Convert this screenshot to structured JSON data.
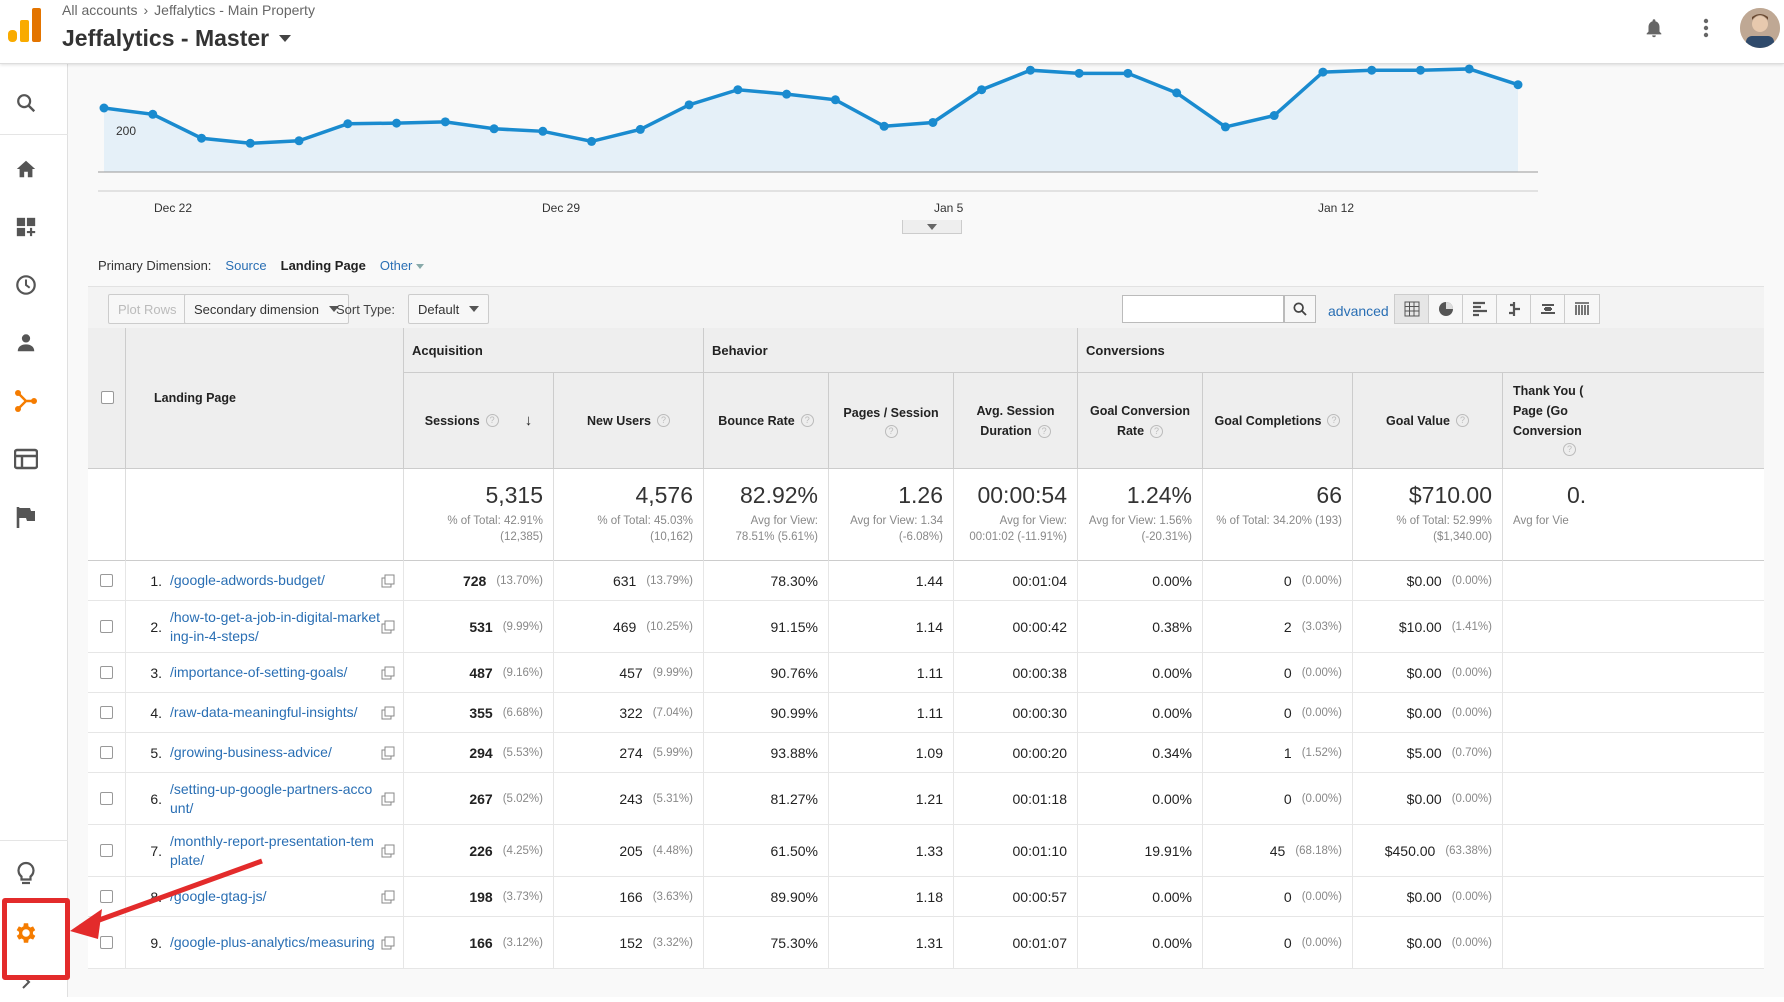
{
  "header": {
    "breadcrumb_root": "All accounts",
    "breadcrumb_property": "Jeffalytics - Main Property",
    "view_title": "Jeffalytics - Master"
  },
  "nav": {
    "items": [
      "search-icon",
      "home-icon",
      "customization-icon",
      "realtime-icon",
      "audience-icon",
      "acquisition-icon",
      "behavior-icon",
      "conversions-icon",
      "discover-icon",
      "admin-gear-icon",
      "expand-icon"
    ]
  },
  "chart": {
    "y_tick": "200",
    "x_ticks": [
      "Dec 22",
      "Dec 29",
      "Jan 5",
      "Jan 12"
    ]
  },
  "chart_data": {
    "type": "area",
    "ylabel": "",
    "y_ticks": [
      200
    ],
    "x_ticks": [
      "Dec 22",
      "Dec 29",
      "Jan 5",
      "Jan 12"
    ],
    "values": [
      200,
      190,
      152,
      144,
      148,
      175,
      176,
      178,
      167,
      163,
      147,
      166,
      205,
      229,
      222,
      213,
      171,
      177,
      229,
      260,
      255,
      255,
      224,
      170,
      188,
      257,
      260,
      260,
      262,
      237
    ]
  },
  "dimension_bar": {
    "label": "Primary Dimension:",
    "source": "Source",
    "landing_page": "Landing Page",
    "other": "Other"
  },
  "toolbar": {
    "plot_rows": "Plot Rows",
    "secondary_dimension": "Secondary dimension",
    "sort_type_label": "Sort Type:",
    "sort_default": "Default",
    "advanced": "advanced"
  },
  "table": {
    "groups": {
      "acquisition": "Acquisition",
      "behavior": "Behavior",
      "conversions": "Conversions"
    },
    "columns": {
      "landing_page": "Landing Page",
      "sessions": "Sessions",
      "new_users": "New Users",
      "bounce_rate": "Bounce Rate",
      "pages_session": "Pages / Session",
      "avg_session_1": "Avg. Session",
      "avg_session_2": "Duration",
      "goal_conv_1": "Goal Conversion",
      "goal_conv_2": "Rate",
      "goal_completions": "Goal Completions",
      "goal_value": "Goal Value",
      "thank_you_1": "Thank You (",
      "thank_you_2": "Page (Go",
      "thank_you_3": "Conversion"
    },
    "totals": {
      "sessions": "5,315",
      "sessions_sub1": "% of Total: 42.91%",
      "sessions_sub2": "(12,385)",
      "new_users": "4,576",
      "new_users_sub1": "% of Total: 45.03%",
      "new_users_sub2": "(10,162)",
      "bounce_rate": "82.92%",
      "bounce_rate_sub1": "Avg for View:",
      "bounce_rate_sub2": "78.51% (5.61%)",
      "pages_session": "1.26",
      "pages_session_sub1": "Avg for View: 1.34",
      "pages_session_sub2": "(-6.08%)",
      "duration": "00:00:54",
      "duration_sub1": "Avg for View:",
      "duration_sub2": "00:01:02 (-11.91%)",
      "conv_rate": "1.24%",
      "conv_rate_sub1": "Avg for View: 1.56%",
      "conv_rate_sub2": "(-20.31%)",
      "completions": "66",
      "completions_sub1": "% of Total: 34.20% (193)",
      "goal_value": "$710.00",
      "goal_value_sub1": "% of Total: 52.99%",
      "goal_value_sub2": "($1,340.00)",
      "thank_you": "0.",
      "thank_you_sub1": "Avg for Vie"
    },
    "rows": [
      {
        "num": "1.",
        "page1": "/google-adwords-budget/",
        "page2": "",
        "sessions": "728",
        "sessions_pct": "(13.70%)",
        "new_users": "631",
        "new_users_pct": "(13.79%)",
        "bounce": "78.30%",
        "pps": "1.44",
        "duration": "00:01:04",
        "conv": "0.00%",
        "comp": "0",
        "comp_pct": "(0.00%)",
        "value": "$0.00",
        "value_pct": "(0.00%)"
      },
      {
        "num": "2.",
        "page1": "/how-to-get-a-job-in-digital-market",
        "page2": "ing-in-4-steps/",
        "sessions": "531",
        "sessions_pct": "(9.99%)",
        "new_users": "469",
        "new_users_pct": "(10.25%)",
        "bounce": "91.15%",
        "pps": "1.14",
        "duration": "00:00:42",
        "conv": "0.38%",
        "comp": "2",
        "comp_pct": "(3.03%)",
        "value": "$10.00",
        "value_pct": "(1.41%)"
      },
      {
        "num": "3.",
        "page1": "/importance-of-setting-goals/",
        "page2": "",
        "sessions": "487",
        "sessions_pct": "(9.16%)",
        "new_users": "457",
        "new_users_pct": "(9.99%)",
        "bounce": "90.76%",
        "pps": "1.11",
        "duration": "00:00:38",
        "conv": "0.00%",
        "comp": "0",
        "comp_pct": "(0.00%)",
        "value": "$0.00",
        "value_pct": "(0.00%)"
      },
      {
        "num": "4.",
        "page1": "/raw-data-meaningful-insights/",
        "page2": "",
        "sessions": "355",
        "sessions_pct": "(6.68%)",
        "new_users": "322",
        "new_users_pct": "(7.04%)",
        "bounce": "90.99%",
        "pps": "1.11",
        "duration": "00:00:30",
        "conv": "0.00%",
        "comp": "0",
        "comp_pct": "(0.00%)",
        "value": "$0.00",
        "value_pct": "(0.00%)"
      },
      {
        "num": "5.",
        "page1": "/growing-business-advice/",
        "page2": "",
        "sessions": "294",
        "sessions_pct": "(5.53%)",
        "new_users": "274",
        "new_users_pct": "(5.99%)",
        "bounce": "93.88%",
        "pps": "1.09",
        "duration": "00:00:20",
        "conv": "0.34%",
        "comp": "1",
        "comp_pct": "(1.52%)",
        "value": "$5.00",
        "value_pct": "(0.70%)"
      },
      {
        "num": "6.",
        "page1": "/setting-up-google-partners-acco",
        "page2": "unt/",
        "sessions": "267",
        "sessions_pct": "(5.02%)",
        "new_users": "243",
        "new_users_pct": "(5.31%)",
        "bounce": "81.27%",
        "pps": "1.21",
        "duration": "00:01:18",
        "conv": "0.00%",
        "comp": "0",
        "comp_pct": "(0.00%)",
        "value": "$0.00",
        "value_pct": "(0.00%)"
      },
      {
        "num": "7.",
        "page1": "/monthly-report-presentation-tem",
        "page2": "plate/",
        "sessions": "226",
        "sessions_pct": "(4.25%)",
        "new_users": "205",
        "new_users_pct": "(4.48%)",
        "bounce": "61.50%",
        "pps": "1.33",
        "duration": "00:01:10",
        "conv": "19.91%",
        "comp": "45",
        "comp_pct": "(68.18%)",
        "value": "$450.00",
        "value_pct": "(63.38%)"
      },
      {
        "num": "8.",
        "page1": "/google-gtag-js/",
        "page2": "",
        "sessions": "198",
        "sessions_pct": "(3.73%)",
        "new_users": "166",
        "new_users_pct": "(3.63%)",
        "bounce": "89.90%",
        "pps": "1.18",
        "duration": "00:00:57",
        "conv": "0.00%",
        "comp": "0",
        "comp_pct": "(0.00%)",
        "value": "$0.00",
        "value_pct": "(0.00%)"
      },
      {
        "num": "9.",
        "page1": "/google-plus-analytics/measuring",
        "page2": "",
        "sessions": "166",
        "sessions_pct": "(3.12%)",
        "new_users": "152",
        "new_users_pct": "(3.32%)",
        "bounce": "75.30%",
        "pps": "1.31",
        "duration": "00:01:07",
        "conv": "0.00%",
        "comp": "0",
        "comp_pct": "(0.00%)",
        "value": "$0.00",
        "value_pct": "(0.00%)"
      }
    ]
  },
  "colors": {
    "accent": "#f57c00",
    "line": "#1a8bcf",
    "area": "#e5f0f8",
    "link": "#2a6fb4",
    "annotation": "#e32b2b"
  }
}
